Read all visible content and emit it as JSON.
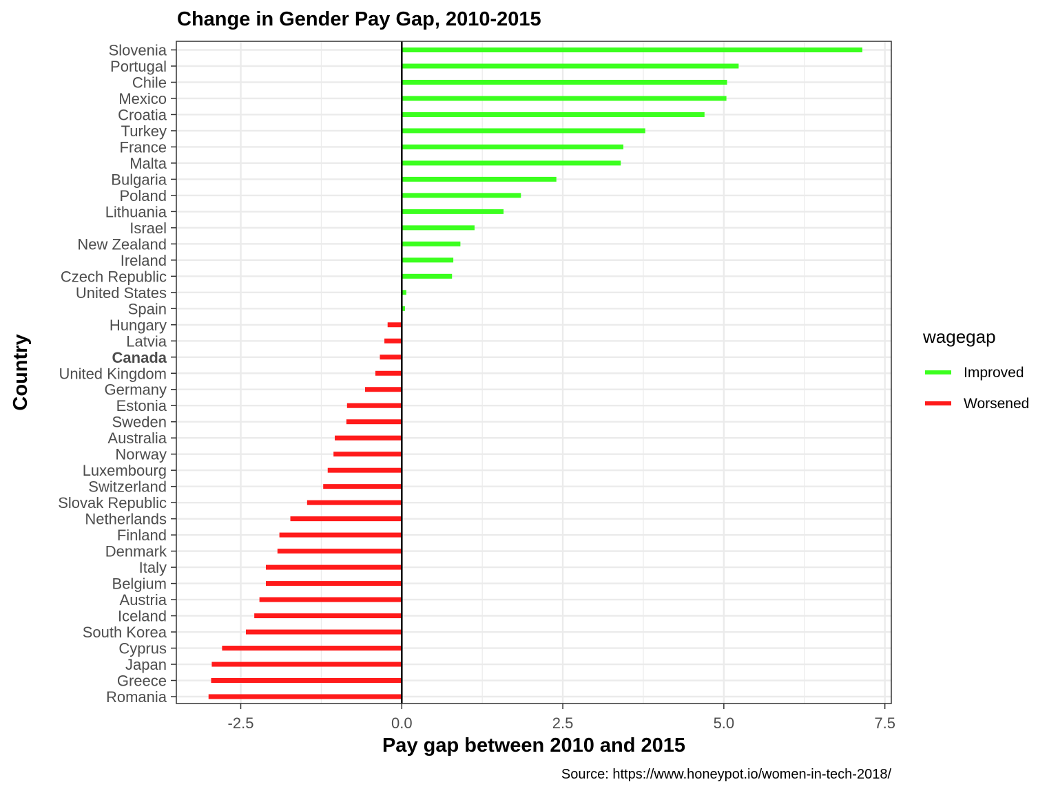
{
  "chart_data": {
    "type": "bar",
    "orientation": "horizontal",
    "title": "Change in Gender Pay Gap, 2010-2015",
    "xlabel": "Pay gap between 2010 and 2015",
    "ylabel": "Country",
    "caption": "Source: https://www.honeypot.io/women-in-tech-2018/",
    "xlim": [
      -3.5,
      7.6
    ],
    "xticks": [
      -2.5,
      0.0,
      2.5,
      5.0,
      7.5
    ],
    "xtick_labels": [
      "-2.5",
      "0.0",
      "2.5",
      "5.0",
      "7.5"
    ],
    "grid": true,
    "zero_line": true,
    "legend": {
      "title": "wagegap",
      "position": "right",
      "entries": [
        {
          "label": "Improved",
          "color": "#3BFF1E"
        },
        {
          "label": "Worsened",
          "color": "#FF1A1A"
        }
      ]
    },
    "highlighted_category": "Canada",
    "categories": [
      "Slovenia",
      "Portugal",
      "Chile",
      "Mexico",
      "Croatia",
      "Turkey",
      "France",
      "Malta",
      "Bulgaria",
      "Poland",
      "Lithuania",
      "Israel",
      "New Zealand",
      "Ireland",
      "Czech Republic",
      "United States",
      "Spain",
      "Hungary",
      "Latvia",
      "Canada",
      "United Kingdom",
      "Germany",
      "Estonia",
      "Sweden",
      "Australia",
      "Norway",
      "Luxembourg",
      "Switzerland",
      "Slovak Republic",
      "Netherlands",
      "Finland",
      "Denmark",
      "Italy",
      "Belgium",
      "Austria",
      "Iceland",
      "South Korea",
      "Cyprus",
      "Japan",
      "Greece",
      "Romania"
    ],
    "values": [
      7.15,
      5.23,
      5.05,
      5.04,
      4.7,
      3.78,
      3.44,
      3.4,
      2.4,
      1.85,
      1.58,
      1.13,
      0.91,
      0.8,
      0.78,
      0.07,
      0.05,
      -0.22,
      -0.27,
      -0.34,
      -0.41,
      -0.57,
      -0.85,
      -0.86,
      -1.04,
      -1.06,
      -1.15,
      -1.22,
      -1.47,
      -1.73,
      -1.9,
      -1.93,
      -2.11,
      -2.11,
      -2.21,
      -2.29,
      -2.42,
      -2.79,
      -2.95,
      -2.96,
      -3.0
    ],
    "wagegap": [
      "Improved",
      "Improved",
      "Improved",
      "Improved",
      "Improved",
      "Improved",
      "Improved",
      "Improved",
      "Improved",
      "Improved",
      "Improved",
      "Improved",
      "Improved",
      "Improved",
      "Improved",
      "Improved",
      "Improved",
      "Worsened",
      "Worsened",
      "Worsened",
      "Worsened",
      "Worsened",
      "Worsened",
      "Worsened",
      "Worsened",
      "Worsened",
      "Worsened",
      "Worsened",
      "Worsened",
      "Worsened",
      "Worsened",
      "Worsened",
      "Worsened",
      "Worsened",
      "Worsened",
      "Worsened",
      "Worsened",
      "Worsened",
      "Worsened",
      "Worsened",
      "Worsened"
    ]
  }
}
